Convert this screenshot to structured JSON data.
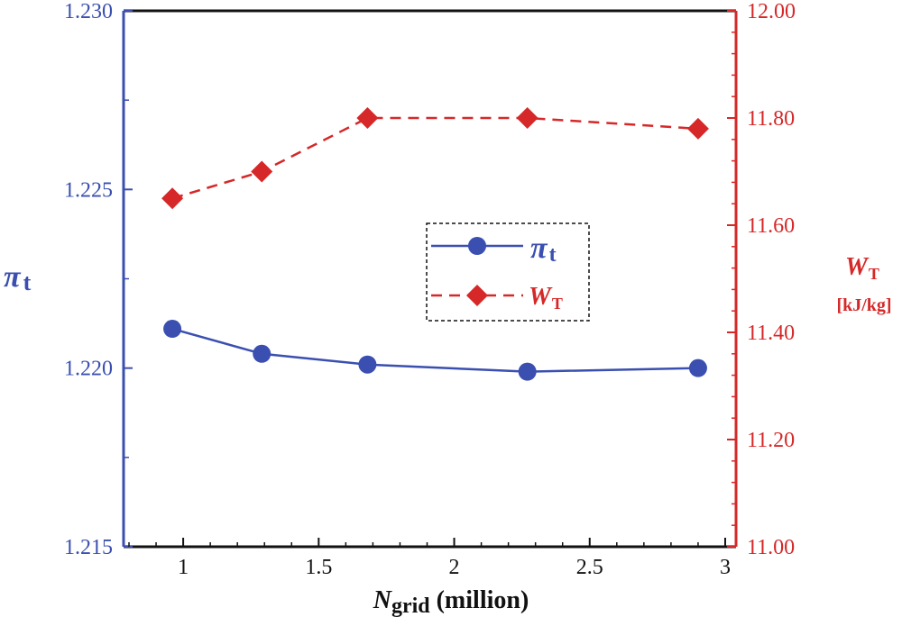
{
  "chart_data": {
    "type": "line",
    "xlabel": {
      "symbol": "N",
      "sub": "grid",
      "rest": " (million)"
    },
    "xlim": [
      0.78,
      3.04
    ],
    "x_ticks": [
      1,
      1.5,
      2,
      2.5,
      3
    ],
    "x_tick_labels": [
      "1",
      "1.5",
      "2",
      "2.5",
      "3"
    ],
    "left_axis": {
      "label": {
        "symbol": "π",
        "sub": "t"
      },
      "ylim": [
        1.215,
        1.23
      ],
      "ticks": [
        1.215,
        1.22,
        1.225,
        1.23
      ],
      "tick_labels": [
        "1.215",
        "1.220",
        "1.225",
        "1.230"
      ],
      "minor_ticks": [
        1.2175,
        1.2225,
        1.2275
      ],
      "color": "#3a4fb0"
    },
    "right_axis": {
      "label": {
        "symbol": "W",
        "sub": "T",
        "units": "[kJ/kg]"
      },
      "ylim": [
        11.0,
        12.0
      ],
      "ticks": [
        11.0,
        11.2,
        11.4,
        11.6,
        11.8,
        12.0
      ],
      "tick_labels": [
        "11.00",
        "11.20",
        "11.40",
        "11.60",
        "11.80",
        "12.00"
      ],
      "color": "#d62828"
    },
    "series": [
      {
        "name": "π_t",
        "axis": "left",
        "style": "solid",
        "marker": "circle",
        "color": "#3a4fb0",
        "x": [
          0.96,
          1.29,
          1.68,
          2.27,
          2.9
        ],
        "values": [
          1.2211,
          1.2204,
          1.2201,
          1.2199,
          1.22
        ]
      },
      {
        "name": "W_T",
        "axis": "right",
        "style": "dashed",
        "marker": "diamond",
        "color": "#d62828",
        "x": [
          0.96,
          1.29,
          1.68,
          2.27,
          2.9
        ],
        "values": [
          11.65,
          11.7,
          11.8,
          11.8,
          11.78
        ]
      }
    ],
    "legend": {
      "placement": "center",
      "entries": [
        {
          "symbol": "π",
          "sub": "t"
        },
        {
          "symbol": "W",
          "sub": "T"
        }
      ]
    }
  }
}
